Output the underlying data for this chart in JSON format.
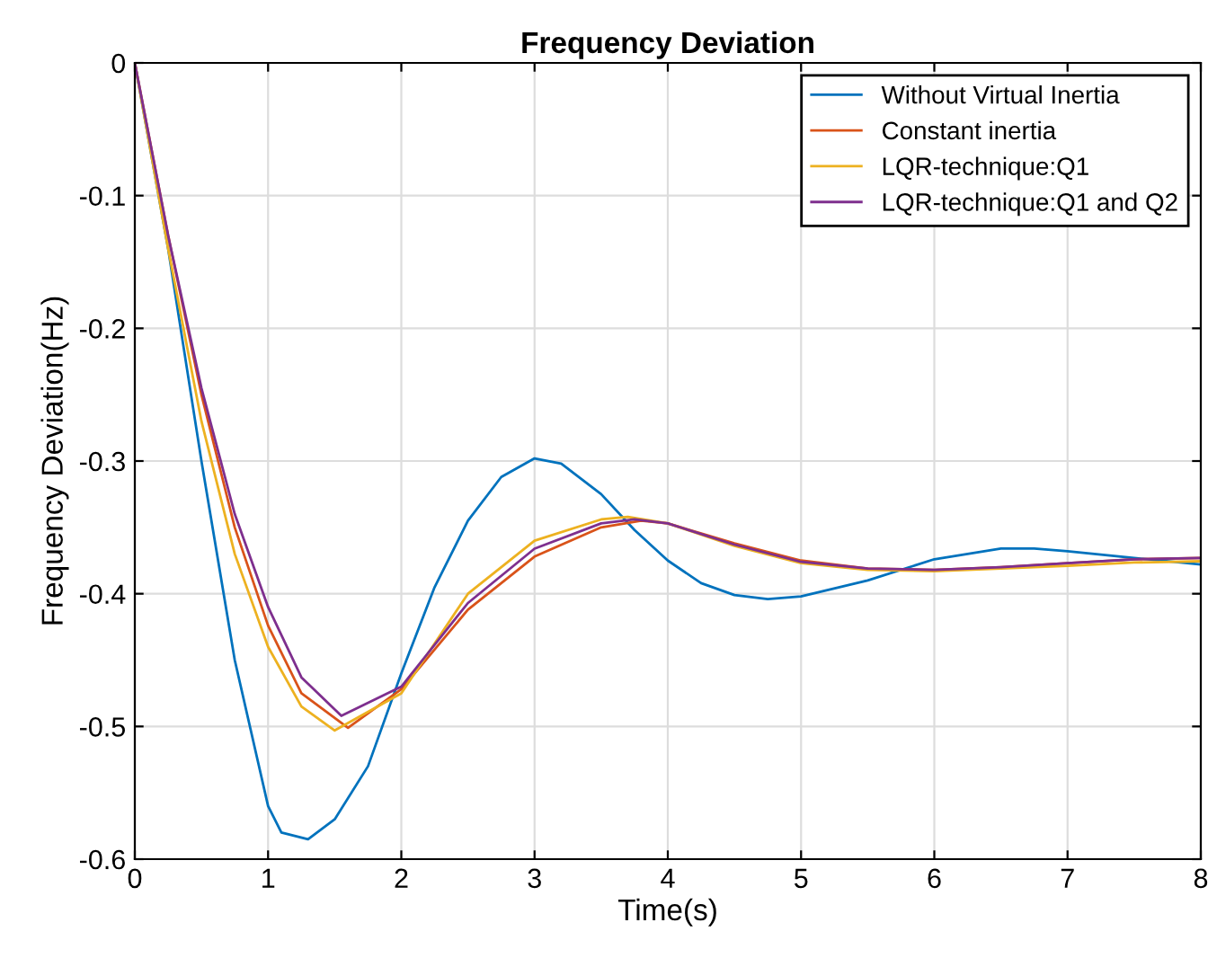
{
  "chart_data": {
    "type": "line",
    "title": "Frequency Deviation",
    "xlabel": "Time(s)",
    "ylabel": "Frequency Deviation(Hz)",
    "xlim": [
      0,
      8
    ],
    "ylim": [
      -0.6,
      0
    ],
    "xticks": [
      0,
      1,
      2,
      3,
      4,
      5,
      6,
      7,
      8
    ],
    "yticks": [
      -0.6,
      -0.5,
      -0.4,
      -0.3,
      -0.2,
      -0.1,
      0
    ],
    "grid": true,
    "legend": "top right",
    "series": [
      {
        "name": "Without Virtual Inertia",
        "color": "#0072bd",
        "x": [
          0,
          0.25,
          0.5,
          0.75,
          1.0,
          1.1,
          1.3,
          1.5,
          1.75,
          2.0,
          2.25,
          2.5,
          2.75,
          3.0,
          3.2,
          3.5,
          3.75,
          4.0,
          4.25,
          4.5,
          4.75,
          5.0,
          5.5,
          6.0,
          6.5,
          6.75,
          7.0,
          7.5,
          8.0
        ],
        "values": [
          0,
          -0.14,
          -0.3,
          -0.45,
          -0.56,
          -0.58,
          -0.585,
          -0.57,
          -0.53,
          -0.46,
          -0.395,
          -0.345,
          -0.312,
          -0.298,
          -0.302,
          -0.325,
          -0.352,
          -0.375,
          -0.392,
          -0.401,
          -0.404,
          -0.402,
          -0.39,
          -0.374,
          -0.366,
          -0.366,
          -0.368,
          -0.373,
          -0.378
        ]
      },
      {
        "name": "Constant inertia",
        "color": "#d95319",
        "x": [
          0,
          0.25,
          0.5,
          0.75,
          1.0,
          1.25,
          1.6,
          2.0,
          2.5,
          3.0,
          3.5,
          3.8,
          4.0,
          4.5,
          5.0,
          5.5,
          6.0,
          6.5,
          7.0,
          7.5,
          8.0
        ],
        "values": [
          0,
          -0.13,
          -0.25,
          -0.35,
          -0.424,
          -0.475,
          -0.501,
          -0.472,
          -0.412,
          -0.372,
          -0.35,
          -0.345,
          -0.347,
          -0.362,
          -0.375,
          -0.381,
          -0.382,
          -0.38,
          -0.377,
          -0.374,
          -0.373
        ]
      },
      {
        "name": "LQR-technique:Q1",
        "color": "#edb120",
        "x": [
          0,
          0.25,
          0.5,
          0.75,
          1.0,
          1.25,
          1.5,
          2.0,
          2.5,
          3.0,
          3.5,
          3.7,
          4.0,
          4.5,
          5.0,
          5.5,
          6.0,
          6.5,
          7.0,
          7.5,
          8.0
        ],
        "values": [
          0,
          -0.14,
          -0.27,
          -0.37,
          -0.44,
          -0.485,
          -0.503,
          -0.475,
          -0.4,
          -0.36,
          -0.344,
          -0.342,
          -0.347,
          -0.364,
          -0.377,
          -0.382,
          -0.383,
          -0.381,
          -0.379,
          -0.3765,
          -0.3755
        ]
      },
      {
        "name": "LQR-technique:Q1 and Q2",
        "color": "#7e2f8e",
        "x": [
          0,
          0.25,
          0.5,
          0.75,
          1.0,
          1.25,
          1.55,
          2.0,
          2.5,
          3.0,
          3.5,
          3.75,
          4.0,
          4.5,
          5.0,
          5.5,
          6.0,
          6.5,
          7.0,
          7.5,
          8.0
        ],
        "values": [
          0,
          -0.13,
          -0.245,
          -0.34,
          -0.41,
          -0.463,
          -0.492,
          -0.47,
          -0.407,
          -0.366,
          -0.347,
          -0.344,
          -0.347,
          -0.363,
          -0.376,
          -0.381,
          -0.382,
          -0.38,
          -0.377,
          -0.374,
          -0.373
        ]
      }
    ]
  }
}
